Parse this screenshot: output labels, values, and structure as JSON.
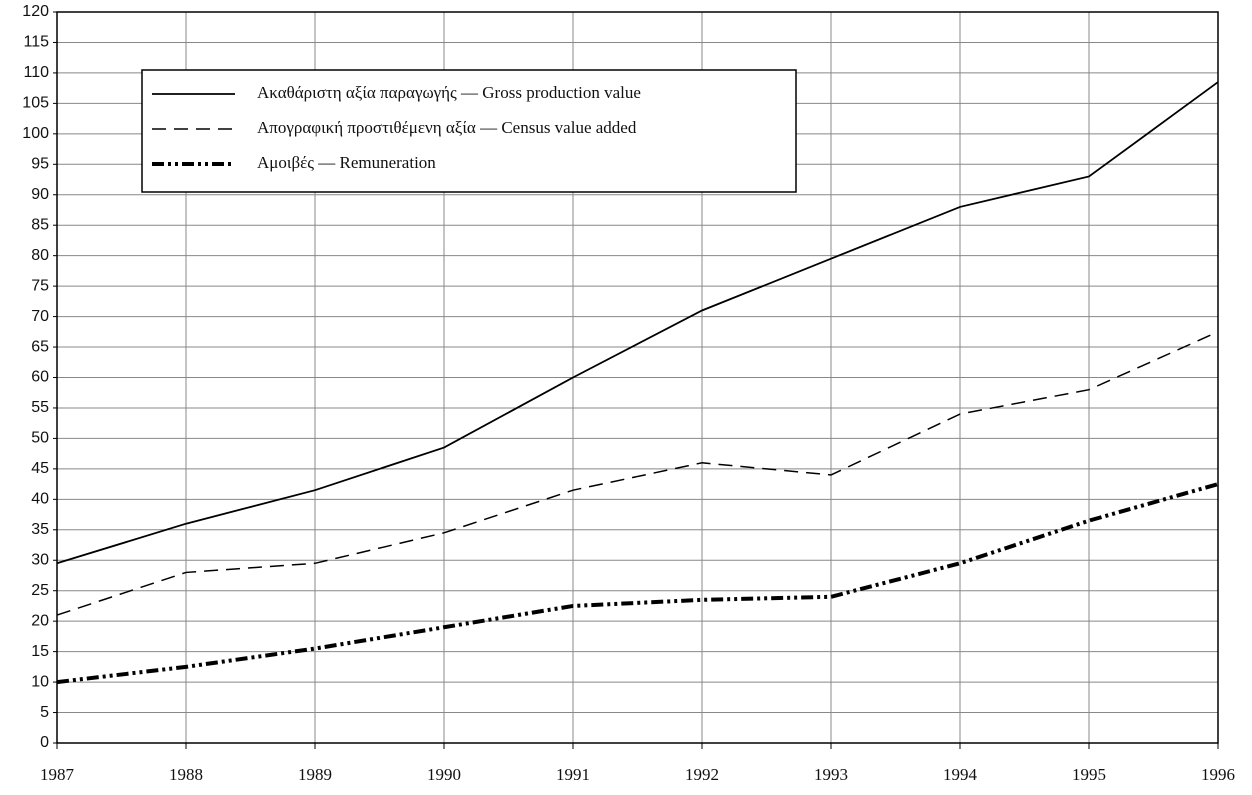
{
  "chart_data": {
    "type": "line",
    "x": [
      1987,
      1988,
      1989,
      1990,
      1991,
      1992,
      1993,
      1994,
      1995,
      1996
    ],
    "xlim": [
      1987,
      1996
    ],
    "xticks": [
      1987,
      1988,
      1989,
      1990,
      1991,
      1992,
      1993,
      1994,
      1995,
      1996
    ],
    "ylim": [
      0,
      120
    ],
    "yticks": [
      0,
      5,
      10,
      15,
      20,
      25,
      30,
      35,
      40,
      45,
      50,
      55,
      60,
      65,
      70,
      75,
      80,
      85,
      90,
      95,
      100,
      105,
      110,
      115,
      120
    ],
    "grid": true,
    "legend": "top-left",
    "series": [
      {
        "name": "Ακαθάριστη αξία παραγωγής — Gross production value",
        "color": "#000000",
        "style": "solid",
        "values": [
          29.5,
          36,
          41.5,
          48.5,
          60,
          71,
          79.5,
          88,
          93,
          108.5
        ]
      },
      {
        "name": "Απογραφική προστιθέμενη αξία — Census value added",
        "color": "#000000",
        "style": "dashed",
        "values": [
          21,
          28,
          29.5,
          34.5,
          41.5,
          46,
          44,
          54,
          58,
          67.5
        ]
      },
      {
        "name": "Αμοιβές — Remuneration",
        "color": "#000000",
        "style": "dashdotdot",
        "values": [
          10,
          12.5,
          15.5,
          19,
          22.5,
          23.5,
          24,
          29.5,
          36.5,
          42.5
        ]
      }
    ]
  }
}
